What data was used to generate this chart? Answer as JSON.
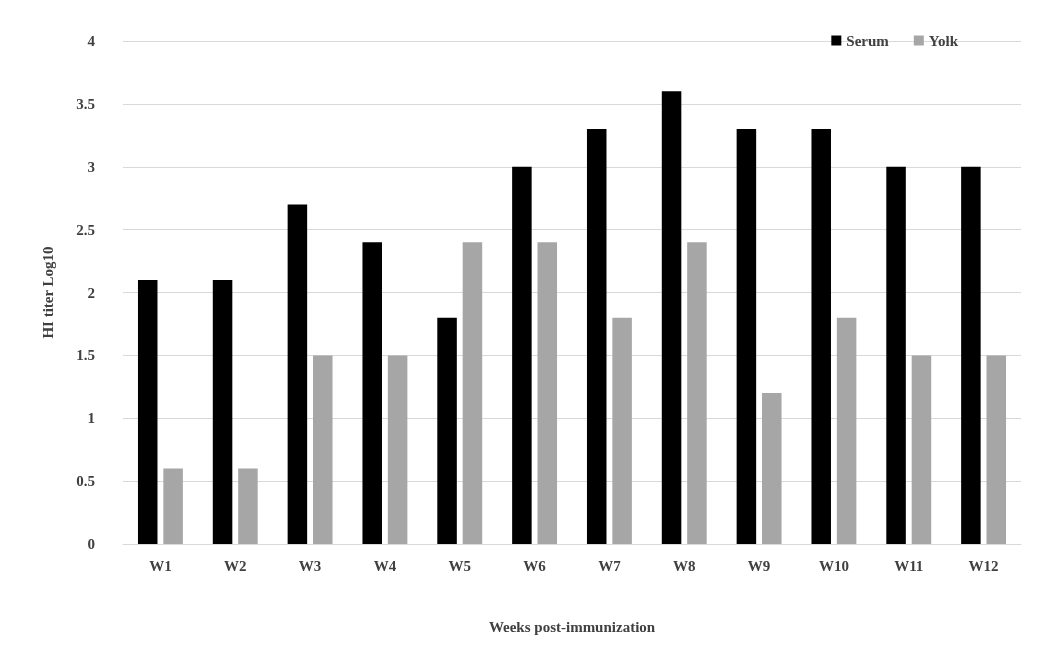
{
  "chart_data": {
    "type": "bar",
    "xlabel": "Weeks post-immunization",
    "ylabel": "HI titer Log10",
    "categories": [
      "W1",
      "W2",
      "W3",
      "W4",
      "W5",
      "W6",
      "W7",
      "W8",
      "W9",
      "W10",
      "W11",
      "W12"
    ],
    "series": [
      {
        "name": "Serum",
        "color": "#000000",
        "values": [
          2.1,
          2.1,
          2.7,
          2.4,
          1.8,
          3.0,
          3.3,
          3.6,
          3.3,
          3.3,
          3.0,
          3.0
        ]
      },
      {
        "name": "Yolk",
        "color": "#a6a6a6",
        "values": [
          0.6,
          0.6,
          1.5,
          1.5,
          2.4,
          2.4,
          1.8,
          2.4,
          1.2,
          1.8,
          1.5,
          1.5
        ]
      }
    ],
    "ylim": [
      0,
      4
    ],
    "yticks": [
      0,
      0.5,
      1,
      1.5,
      2,
      2.5,
      3,
      3.5,
      4
    ],
    "grid": "y",
    "legend": "top right"
  }
}
